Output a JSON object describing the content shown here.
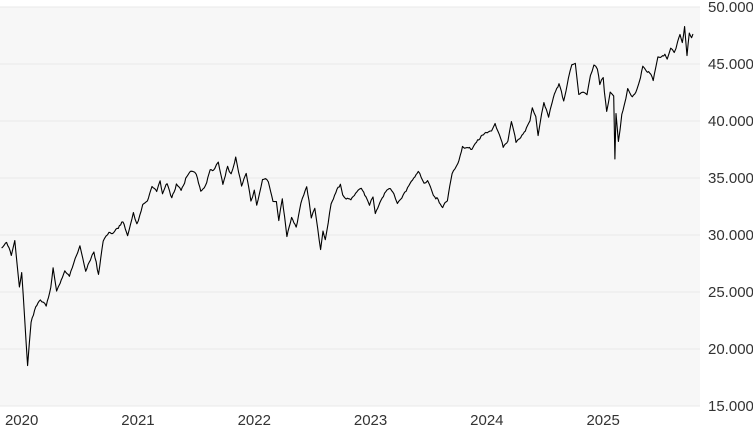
{
  "colors": {
    "background": "#ffffff",
    "plot_background": "#f7f7f7",
    "gridline": "#e8e8e8",
    "line": "#000000",
    "axis_label": "#333333"
  },
  "chart": {
    "y_axis": {
      "side": "right",
      "ticks": [
        {
          "label": "50.000",
          "value": 50000
        },
        {
          "label": "45.000",
          "value": 45000
        },
        {
          "label": "40.000",
          "value": 40000
        },
        {
          "label": "35.000",
          "value": 35000
        },
        {
          "label": "30.000",
          "value": 30000
        },
        {
          "label": "25.000",
          "value": 25000
        },
        {
          "label": "20.000",
          "value": 20000
        },
        {
          "label": "15.000",
          "value": 15000
        }
      ]
    },
    "x_axis": {
      "ticks": [
        {
          "label": "2020",
          "year": 2020
        },
        {
          "label": "2021",
          "year": 2021
        },
        {
          "label": "2022",
          "year": 2022
        },
        {
          "label": "2023",
          "year": 2023
        },
        {
          "label": "2024",
          "year": 2024
        },
        {
          "label": "2025",
          "year": 2025
        }
      ]
    }
  },
  "chart_data": {
    "type": "line",
    "title": "",
    "xlabel": "",
    "ylabel": "",
    "legend": "none",
    "grid": "horizontal-only",
    "x_range": [
      2019.983,
      2026.002
    ],
    "ylim": [
      15000,
      50000
    ],
    "y_tick_step": 5000,
    "y_tick_format": "dot-thousands-separator",
    "series": [
      {
        "name": "price",
        "points": [
          [
            2020.0,
            28868
          ],
          [
            2020.04,
            29348
          ],
          [
            2020.08,
            28256
          ],
          [
            2020.11,
            29551
          ],
          [
            2020.15,
            25409
          ],
          [
            2020.17,
            26703
          ],
          [
            2020.22,
            18592
          ],
          [
            2020.25,
            22327
          ],
          [
            2020.29,
            23720
          ],
          [
            2020.33,
            24346
          ],
          [
            2020.38,
            23764
          ],
          [
            2020.42,
            25383
          ],
          [
            2020.44,
            27110
          ],
          [
            2020.47,
            25128
          ],
          [
            2020.5,
            25813
          ],
          [
            2020.54,
            26870
          ],
          [
            2020.58,
            26428
          ],
          [
            2020.63,
            27931
          ],
          [
            2020.67,
            29100
          ],
          [
            2020.72,
            26763
          ],
          [
            2020.76,
            27816
          ],
          [
            2020.79,
            28494
          ],
          [
            2020.83,
            26502
          ],
          [
            2020.87,
            29479
          ],
          [
            2020.92,
            30218
          ],
          [
            2020.96,
            30199
          ],
          [
            2021.0,
            30606
          ],
          [
            2021.04,
            31188
          ],
          [
            2021.08,
            29983
          ],
          [
            2021.13,
            31961
          ],
          [
            2021.16,
            30932
          ],
          [
            2021.21,
            32628
          ],
          [
            2021.25,
            32982
          ],
          [
            2021.29,
            34201
          ],
          [
            2021.33,
            33875
          ],
          [
            2021.36,
            34778
          ],
          [
            2021.38,
            33588
          ],
          [
            2021.42,
            34529
          ],
          [
            2021.46,
            33290
          ],
          [
            2021.5,
            34503
          ],
          [
            2021.54,
            33962
          ],
          [
            2021.58,
            34935
          ],
          [
            2021.62,
            35625
          ],
          [
            2021.67,
            35361
          ],
          [
            2021.71,
            33844
          ],
          [
            2021.75,
            34326
          ],
          [
            2021.79,
            35678
          ],
          [
            2021.83,
            35820
          ],
          [
            2021.86,
            36432
          ],
          [
            2021.9,
            34484
          ],
          [
            2021.94,
            35971
          ],
          [
            2021.97,
            35365
          ],
          [
            2022.0,
            36338
          ],
          [
            2022.01,
            36800
          ],
          [
            2022.06,
            34298
          ],
          [
            2022.1,
            35405
          ],
          [
            2022.14,
            33011
          ],
          [
            2022.17,
            33892
          ],
          [
            2022.19,
            32632
          ],
          [
            2022.24,
            34861
          ],
          [
            2022.29,
            34721
          ],
          [
            2022.33,
            32977
          ],
          [
            2022.36,
            32899
          ],
          [
            2022.38,
            31253
          ],
          [
            2022.41,
            33213
          ],
          [
            2022.45,
            29888
          ],
          [
            2022.49,
            31500
          ],
          [
            2022.53,
            30630
          ],
          [
            2022.57,
            32845
          ],
          [
            2022.62,
            34281
          ],
          [
            2022.66,
            31510
          ],
          [
            2022.69,
            32381
          ],
          [
            2022.74,
            28726
          ],
          [
            2022.76,
            30316
          ],
          [
            2022.78,
            29634
          ],
          [
            2022.83,
            32733
          ],
          [
            2022.87,
            33747
          ],
          [
            2022.91,
            34395
          ],
          [
            2022.93,
            33476
          ],
          [
            2022.96,
            33204
          ],
          [
            2023.0,
            33147
          ],
          [
            2023.04,
            33630
          ],
          [
            2023.09,
            34053
          ],
          [
            2023.13,
            33297
          ],
          [
            2023.16,
            32656
          ],
          [
            2023.19,
            33390
          ],
          [
            2023.21,
            31819
          ],
          [
            2023.25,
            32859
          ],
          [
            2023.29,
            33675
          ],
          [
            2023.33,
            34098
          ],
          [
            2023.37,
            33618
          ],
          [
            2023.4,
            32765
          ],
          [
            2023.45,
            33573
          ],
          [
            2023.5,
            34408
          ],
          [
            2023.54,
            34952
          ],
          [
            2023.58,
            35630
          ],
          [
            2023.63,
            34501
          ],
          [
            2023.66,
            34722
          ],
          [
            2023.71,
            33508
          ],
          [
            2023.75,
            33119
          ],
          [
            2023.79,
            32417
          ],
          [
            2023.83,
            33053
          ],
          [
            2023.87,
            35430
          ],
          [
            2023.92,
            36245
          ],
          [
            2023.96,
            37710
          ],
          [
            2024.0,
            37690
          ],
          [
            2024.04,
            37467
          ],
          [
            2024.08,
            38150
          ],
          [
            2024.12,
            38677
          ],
          [
            2024.16,
            38996
          ],
          [
            2024.21,
            39131
          ],
          [
            2024.24,
            39807
          ],
          [
            2024.29,
            38461
          ],
          [
            2024.31,
            37735
          ],
          [
            2024.35,
            38239
          ],
          [
            2024.38,
            40003
          ],
          [
            2024.42,
            38111
          ],
          [
            2024.46,
            38589
          ],
          [
            2024.5,
            39119
          ],
          [
            2024.54,
            40000
          ],
          [
            2024.56,
            41198
          ],
          [
            2024.59,
            40347
          ],
          [
            2024.61,
            38703
          ],
          [
            2024.64,
            40659
          ],
          [
            2024.66,
            41563
          ],
          [
            2024.7,
            40345
          ],
          [
            2024.73,
            41622
          ],
          [
            2024.75,
            42330
          ],
          [
            2024.79,
            43275
          ],
          [
            2024.83,
            41763
          ],
          [
            2024.87,
            43729
          ],
          [
            2024.9,
            44911
          ],
          [
            2024.93,
            45014
          ],
          [
            2024.96,
            42342
          ],
          [
            2025.0,
            42544
          ],
          [
            2025.03,
            42297
          ],
          [
            2025.06,
            44025
          ],
          [
            2025.09,
            44882
          ],
          [
            2025.12,
            44546
          ],
          [
            2025.14,
            43239
          ],
          [
            2025.17,
            43841
          ],
          [
            2025.18,
            42520
          ],
          [
            2025.2,
            40814
          ],
          [
            2025.23,
            42587
          ],
          [
            2025.26,
            42225
          ],
          [
            2025.27,
            36612
          ],
          [
            2025.28,
            40608
          ],
          [
            2025.3,
            38170
          ],
          [
            2025.33,
            40527
          ],
          [
            2025.35,
            41317
          ],
          [
            2025.38,
            42792
          ],
          [
            2025.42,
            42098
          ],
          [
            2025.46,
            42762
          ],
          [
            2025.49,
            43819
          ],
          [
            2025.51,
            44828
          ],
          [
            2025.54,
            44371
          ],
          [
            2025.58,
            44131
          ],
          [
            2025.6,
            43589
          ],
          [
            2025.64,
            45632
          ],
          [
            2025.66,
            45545
          ],
          [
            2025.7,
            45834
          ],
          [
            2025.72,
            45400
          ],
          [
            2025.75,
            46398
          ],
          [
            2025.78,
            45952
          ],
          [
            2025.81,
            46925
          ],
          [
            2025.83,
            47563
          ],
          [
            2025.85,
            46912
          ],
          [
            2025.87,
            48254
          ],
          [
            2025.89,
            45752
          ],
          [
            2025.91,
            47716
          ],
          [
            2025.93,
            47289
          ],
          [
            2025.94,
            47550
          ]
        ]
      }
    ]
  }
}
